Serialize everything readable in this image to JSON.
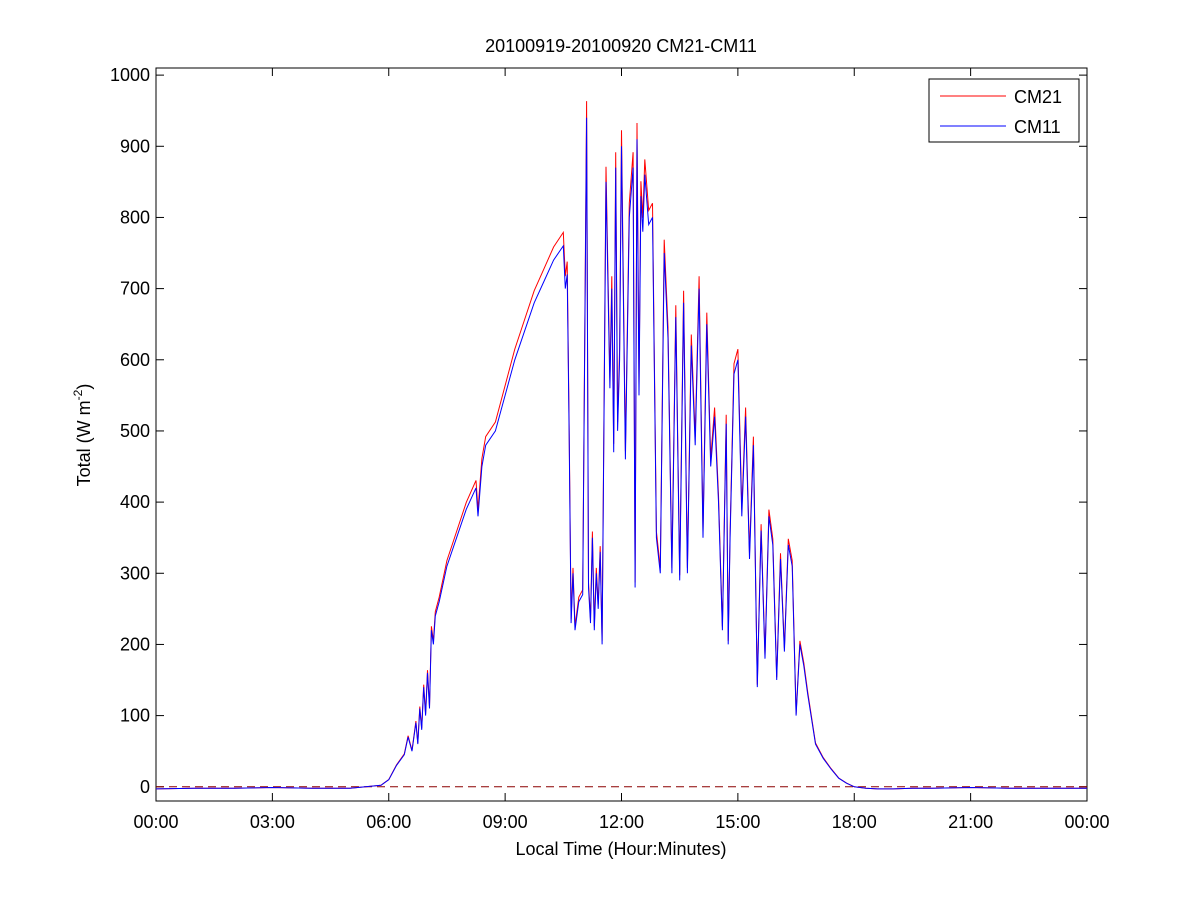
{
  "chart_data": {
    "type": "line",
    "title": "20100919-20100920 CM21-CM11",
    "xlabel": "Local Time (Hour:Minutes)",
    "ylabel_main": "Total (W m",
    "ylabel_sup": "-2",
    "ylabel_close": ")",
    "xlim_hours": [
      0,
      24
    ],
    "ylim": [
      -20,
      1010
    ],
    "x_tick_hours": [
      0,
      3,
      6,
      9,
      12,
      15,
      18,
      21,
      24
    ],
    "x_tick_labels": [
      "00:00",
      "03:00",
      "06:00",
      "09:00",
      "12:00",
      "15:00",
      "18:00",
      "21:00",
      "00:00"
    ],
    "y_ticks": [
      0,
      100,
      200,
      300,
      400,
      500,
      600,
      700,
      800,
      900,
      1000
    ],
    "y_tick_labels": [
      "0",
      "100",
      "200",
      "300",
      "400",
      "500",
      "600",
      "700",
      "800",
      "900",
      "1000"
    ],
    "grid": false,
    "legend_position": "top-right",
    "reference_line": {
      "y": 0,
      "style": "dashed",
      "color": "#8b0000"
    },
    "series": [
      {
        "name": "CM21",
        "color": "#ff0000"
      },
      {
        "name": "CM11",
        "color": "#0000ff"
      }
    ],
    "points_hours": [
      0.0,
      1.0,
      2.0,
      3.0,
      4.0,
      5.0,
      5.8,
      6.0,
      6.2,
      6.4,
      6.5,
      6.6,
      6.7,
      6.75,
      6.8,
      6.85,
      6.9,
      6.95,
      7.0,
      7.05,
      7.1,
      7.15,
      7.2,
      7.3,
      7.5,
      7.75,
      8.0,
      8.25,
      8.3,
      8.4,
      8.5,
      8.75,
      9.0,
      9.25,
      9.5,
      9.75,
      10.0,
      10.25,
      10.5,
      10.55,
      10.6,
      10.65,
      10.7,
      10.75,
      10.8,
      10.9,
      11.0,
      11.1,
      11.15,
      11.2,
      11.25,
      11.3,
      11.35,
      11.4,
      11.45,
      11.5,
      11.6,
      11.7,
      11.75,
      11.8,
      11.85,
      11.9,
      11.95,
      12.0,
      12.1,
      12.2,
      12.3,
      12.35,
      12.4,
      12.45,
      12.5,
      12.55,
      12.6,
      12.7,
      12.8,
      12.9,
      13.0,
      13.1,
      13.2,
      13.3,
      13.4,
      13.5,
      13.6,
      13.7,
      13.8,
      13.9,
      14.0,
      14.1,
      14.2,
      14.3,
      14.4,
      14.5,
      14.6,
      14.7,
      14.75,
      14.8,
      14.9,
      15.0,
      15.1,
      15.2,
      15.3,
      15.4,
      15.5,
      15.6,
      15.7,
      15.8,
      15.9,
      16.0,
      16.1,
      16.2,
      16.3,
      16.4,
      16.5,
      16.6,
      16.7,
      16.8,
      17.0,
      17.2,
      17.4,
      17.6,
      17.8,
      18.0,
      18.3,
      18.6,
      19.0,
      19.5,
      20.0,
      21.0,
      22.0,
      23.0,
      24.0
    ],
    "cm11_values": [
      -3,
      -2,
      -2,
      -1,
      -2,
      -2,
      2,
      10,
      30,
      45,
      70,
      50,
      90,
      60,
      110,
      80,
      140,
      100,
      160,
      110,
      220,
      200,
      240,
      260,
      310,
      350,
      390,
      420,
      380,
      450,
      480,
      500,
      550,
      600,
      640,
      680,
      710,
      740,
      760,
      700,
      720,
      500,
      230,
      300,
      220,
      260,
      270,
      940,
      280,
      230,
      350,
      220,
      300,
      250,
      330,
      200,
      850,
      560,
      700,
      470,
      870,
      500,
      600,
      900,
      460,
      800,
      870,
      280,
      910,
      550,
      830,
      780,
      860,
      790,
      800,
      350,
      300,
      750,
      630,
      300,
      660,
      290,
      680,
      300,
      620,
      480,
      700,
      350,
      650,
      450,
      520,
      400,
      220,
      510,
      200,
      350,
      580,
      600,
      380,
      520,
      320,
      480,
      140,
      360,
      180,
      380,
      340,
      150,
      320,
      190,
      340,
      310,
      100,
      200,
      170,
      130,
      60,
      40,
      25,
      12,
      5,
      0,
      -2,
      -3,
      -3,
      -2,
      -2,
      -1,
      -2,
      -2,
      -2
    ],
    "cm21_offset_factor": 0.025
  }
}
